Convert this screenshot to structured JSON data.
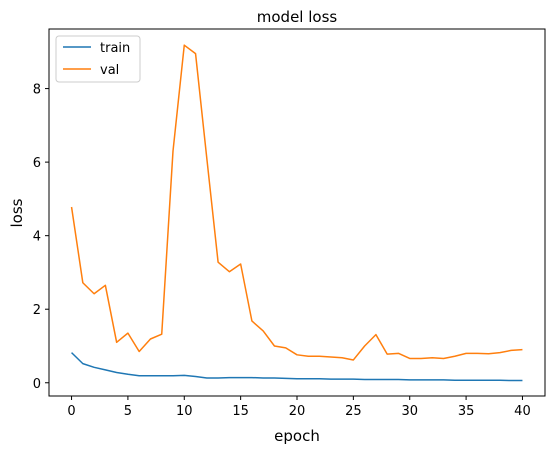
{
  "chart_data": {
    "type": "line",
    "title": "model loss",
    "xlabel": "epoch",
    "ylabel": "loss",
    "xlim": [
      -2,
      42
    ],
    "ylim": [
      -0.36,
      9.62
    ],
    "xticks": [
      0,
      5,
      10,
      15,
      20,
      25,
      30,
      35,
      40
    ],
    "yticks": [
      0,
      2,
      4,
      6,
      8
    ],
    "grid": false,
    "legend_position": "top-left",
    "x": [
      0,
      1,
      2,
      3,
      4,
      5,
      6,
      7,
      8,
      9,
      10,
      11,
      12,
      13,
      14,
      15,
      16,
      17,
      18,
      19,
      20,
      21,
      22,
      23,
      24,
      25,
      26,
      27,
      28,
      29,
      30,
      31,
      32,
      33,
      34,
      35,
      36,
      37,
      38,
      39,
      40
    ],
    "series": [
      {
        "name": "train",
        "color": "#1f77b4",
        "values": [
          0.82,
          0.52,
          0.42,
          0.35,
          0.28,
          0.23,
          0.19,
          0.19,
          0.19,
          0.19,
          0.2,
          0.17,
          0.13,
          0.13,
          0.14,
          0.14,
          0.14,
          0.13,
          0.13,
          0.12,
          0.11,
          0.11,
          0.11,
          0.1,
          0.1,
          0.1,
          0.09,
          0.09,
          0.09,
          0.09,
          0.08,
          0.08,
          0.08,
          0.08,
          0.07,
          0.07,
          0.07,
          0.07,
          0.07,
          0.06,
          0.06
        ]
      },
      {
        "name": "val",
        "color": "#ff7f0e",
        "values": [
          4.78,
          2.72,
          2.42,
          2.65,
          1.1,
          1.35,
          0.85,
          1.19,
          1.32,
          6.3,
          9.18,
          8.95,
          6.1,
          3.28,
          3.02,
          3.23,
          1.68,
          1.41,
          1.0,
          0.95,
          0.76,
          0.72,
          0.72,
          0.7,
          0.68,
          0.62,
          1.0,
          1.31,
          0.78,
          0.8,
          0.66,
          0.66,
          0.68,
          0.66,
          0.72,
          0.8,
          0.8,
          0.79,
          0.82,
          0.88,
          0.9
        ]
      }
    ]
  }
}
